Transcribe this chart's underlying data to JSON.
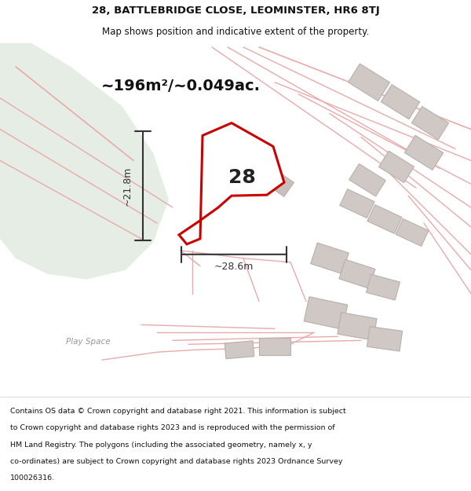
{
  "title_line1": "28, BATTLEBRIDGE CLOSE, LEOMINSTER, HR6 8TJ",
  "title_line2": "Map shows position and indicative extent of the property.",
  "area_text": "~196m²/~0.049ac.",
  "label_28": "28",
  "dim_width": "~28.6m",
  "dim_height": "~21.8m",
  "play_space": "Play Space",
  "footer_lines": [
    "Contains OS data © Crown copyright and database right 2021. This information is subject",
    "to Crown copyright and database rights 2023 and is reproduced with the permission of",
    "HM Land Registry. The polygons (including the associated geometry, namely x, y",
    "co-ordinates) are subject to Crown copyright and database rights 2023 Ordnance Survey",
    "100026316."
  ],
  "map_bg": "#f7f4f0",
  "green_bg": "#e5ede5",
  "property_color": "#cc0000",
  "property_fill": "#ffffff",
  "road_color": "#e8aaaa",
  "building_fc": "#d0c8c4",
  "building_ec": "#b8b0ac",
  "dim_color": "#333333",
  "footer_color": "#111111",
  "title_color": "#111111",
  "white": "#ffffff"
}
